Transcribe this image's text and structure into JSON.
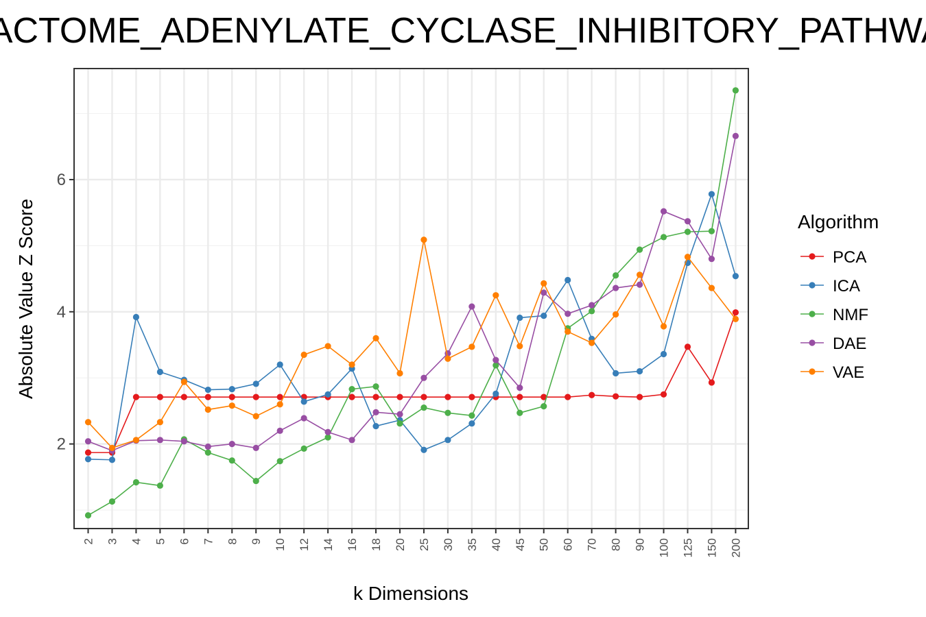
{
  "chart_data": {
    "type": "line",
    "title": "REACTOME_ADENYLATE_CYCLASE_INHIBITORY_PATHWAY",
    "xlabel": "k Dimensions",
    "ylabel": "Absolute Value Z Score",
    "categories": [
      "2",
      "3",
      "4",
      "5",
      "6",
      "7",
      "8",
      "9",
      "10",
      "12",
      "14",
      "16",
      "18",
      "20",
      "25",
      "30",
      "35",
      "40",
      "45",
      "50",
      "60",
      "70",
      "80",
      "90",
      "100",
      "125",
      "150",
      "200"
    ],
    "ylim": [
      0.72,
      7.68
    ],
    "yticks": [
      2,
      4,
      6
    ],
    "grid": true,
    "legend_title": "Algorithm",
    "legend_position": "right",
    "series": [
      {
        "name": "PCA",
        "color": "#e41a1c",
        "values": [
          1.87,
          1.87,
          2.71,
          2.71,
          2.71,
          2.71,
          2.71,
          2.71,
          2.71,
          2.71,
          2.71,
          2.71,
          2.71,
          2.71,
          2.71,
          2.71,
          2.71,
          2.71,
          2.71,
          2.71,
          2.71,
          2.74,
          2.72,
          2.71,
          2.75,
          3.47,
          2.93,
          3.99
        ]
      },
      {
        "name": "ICA",
        "color": "#377eb8",
        "values": [
          1.77,
          1.76,
          3.92,
          3.09,
          2.97,
          2.82,
          2.83,
          2.91,
          3.2,
          2.64,
          2.75,
          3.14,
          2.27,
          2.36,
          1.91,
          2.06,
          2.31,
          2.76,
          3.91,
          3.94,
          4.48,
          3.59,
          3.07,
          3.1,
          3.36,
          4.74,
          5.78,
          4.54
        ]
      },
      {
        "name": "NMF",
        "color": "#4daf4a",
        "values": [
          0.92,
          1.13,
          1.42,
          1.37,
          2.07,
          1.87,
          1.75,
          1.44,
          1.74,
          1.93,
          2.1,
          2.83,
          2.87,
          2.31,
          2.55,
          2.47,
          2.43,
          3.19,
          2.47,
          2.57,
          3.75,
          4.01,
          4.55,
          4.94,
          5.13,
          5.21,
          5.22,
          7.35
        ]
      },
      {
        "name": "DAE",
        "color": "#984ea3",
        "values": [
          2.04,
          1.9,
          2.05,
          2.06,
          2.04,
          1.96,
          2.0,
          1.94,
          2.2,
          2.39,
          2.18,
          2.06,
          2.48,
          2.45,
          3.0,
          3.37,
          4.08,
          3.27,
          2.85,
          4.29,
          3.97,
          4.1,
          4.36,
          4.41,
          5.52,
          5.37,
          4.8,
          6.66
        ]
      },
      {
        "name": "VAE",
        "color": "#ff7f00",
        "values": [
          2.33,
          1.94,
          2.06,
          2.33,
          2.94,
          2.52,
          2.58,
          2.42,
          2.6,
          3.35,
          3.48,
          3.2,
          3.6,
          3.07,
          5.09,
          3.29,
          3.47,
          4.25,
          3.48,
          4.43,
          3.7,
          3.53,
          3.96,
          4.56,
          3.78,
          4.83,
          4.36,
          3.89
        ]
      }
    ]
  }
}
